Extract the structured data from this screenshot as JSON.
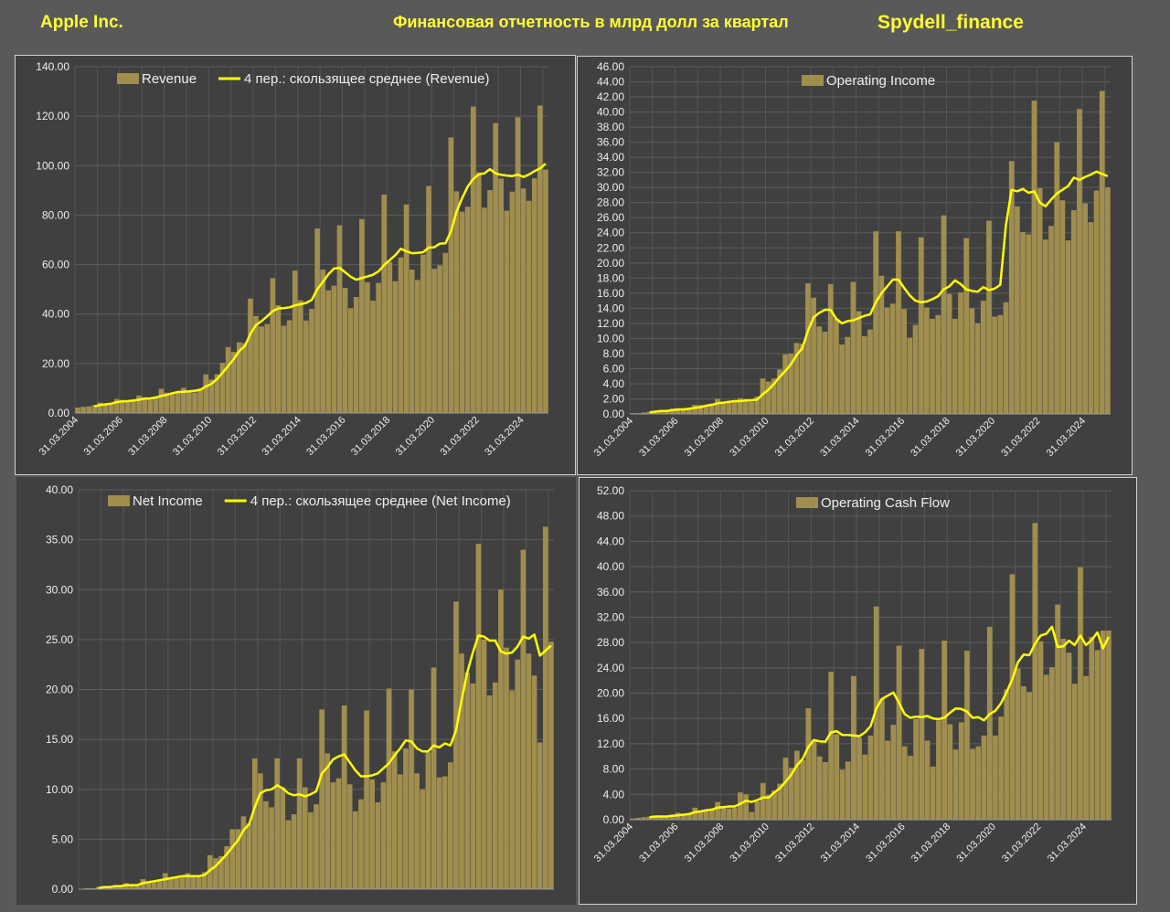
{
  "header": {
    "company": "Apple Inc.",
    "subtitle": "Финансовая отчетность в млрд долл за квартал",
    "brand": "Spydell_finance"
  },
  "colors": {
    "background": "#595959",
    "panel": "#404040",
    "bar": "#a08e4e",
    "line": "#ffff00",
    "header_text": "#ffff33"
  },
  "chart_data": [
    {
      "type": "bar",
      "id": "revenue",
      "title": "",
      "series": [
        {
          "name": "Revenue",
          "kind": "bar",
          "values": [
            2.2,
            2.5,
            2.7,
            3.3,
            4.2,
            3.7,
            3.9,
            5.7,
            5.3,
            4.4,
            4.8,
            7.1,
            6.4,
            5.4,
            6.2,
            9.8,
            8.2,
            7.6,
            8.3,
            10.2,
            9.1,
            8.3,
            9.9,
            15.6,
            13.5,
            15.7,
            20.3,
            26.7,
            24.7,
            28.6,
            28.3,
            46.3,
            39.2,
            35.0,
            36.0,
            54.5,
            43.6,
            35.3,
            37.5,
            57.6,
            45.6,
            37.4,
            42.1,
            74.6,
            58.0,
            49.6,
            51.5,
            75.9,
            50.6,
            42.4,
            46.9,
            78.4,
            52.9,
            45.4,
            52.6,
            88.3,
            61.1,
            53.3,
            62.9,
            84.3,
            58.0,
            53.8,
            64.0,
            91.8,
            58.3,
            59.7,
            64.7,
            111.4,
            89.6,
            81.4,
            83.4,
            123.9,
            97.3,
            83.0,
            90.1,
            117.2,
            94.8,
            81.8,
            89.5,
            119.6,
            90.8,
            85.8,
            94.9,
            124.3,
            98.4
          ]
        },
        {
          "name": "4 пер.: скользящее среднее (Revenue)",
          "kind": "line",
          "values": [
            null,
            null,
            null,
            2.7,
            3.2,
            3.5,
            3.8,
            4.4,
            4.7,
            4.8,
            5.1,
            5.4,
            5.8,
            5.9,
            6.3,
            6.9,
            7.4,
            8.0,
            8.5,
            8.6,
            8.8,
            9.0,
            9.4,
            10.7,
            11.8,
            13.7,
            16.3,
            19.0,
            21.8,
            25.1,
            27.1,
            32.0,
            35.6,
            37.2,
            39.1,
            41.2,
            42.3,
            42.4,
            42.7,
            43.5,
            44.0,
            44.5,
            45.7,
            50.0,
            53.0,
            56.1,
            58.4,
            58.7,
            56.9,
            55.1,
            53.9,
            54.6,
            55.2,
            55.9,
            57.3,
            59.8,
            61.8,
            63.8,
            66.4,
            65.4,
            64.6,
            64.7,
            65.0,
            66.9,
            67.0,
            68.5,
            68.6,
            73.5,
            81.3,
            86.8,
            91.5,
            94.6,
            96.5,
            96.9,
            98.6,
            96.9,
            96.3,
            96.0,
            95.8,
            96.4,
            95.4,
            96.4,
            97.8,
            98.9,
            100.8
          ]
        }
      ],
      "x_labels": [
        "31.03.2004",
        "31.03.2006",
        "31.03.2008",
        "31.03.2010",
        "31.03.2012",
        "31.03.2014",
        "31.03.2016",
        "31.03.2018",
        "31.03.2020",
        "31.03.2022",
        "31.03.2024"
      ],
      "ylim": [
        0,
        140
      ],
      "y_ticks": [
        "0.00",
        "20.00",
        "40.00",
        "60.00",
        "80.00",
        "100.00",
        "120.00",
        "140.00"
      ],
      "grid": true,
      "legend": "top"
    },
    {
      "type": "bar",
      "id": "operating-income",
      "title": "",
      "series": [
        {
          "name": "Operating Income",
          "kind": "bar",
          "values": [
            0.1,
            0.1,
            0.2,
            0.3,
            0.4,
            0.4,
            0.5,
            0.7,
            0.6,
            0.6,
            0.7,
            1.2,
            1.2,
            1.1,
            1.4,
            2.0,
            1.6,
            1.5,
            1.7,
            2.1,
            1.7,
            1.6,
            2.3,
            4.7,
            4.3,
            4.7,
            5.9,
            7.9,
            8.0,
            9.4,
            9.3,
            17.3,
            15.4,
            11.6,
            10.9,
            17.2,
            12.6,
            9.2,
            10.2,
            17.5,
            13.6,
            10.3,
            11.2,
            24.2,
            18.3,
            14.1,
            14.6,
            24.2,
            13.9,
            10.1,
            11.8,
            23.4,
            14.1,
            12.6,
            13.1,
            26.3,
            15.9,
            12.6,
            16.1,
            23.3,
            14.0,
            12.0,
            15.0,
            25.6,
            12.9,
            13.1,
            14.8,
            33.5,
            27.5,
            24.1,
            23.8,
            41.5,
            29.9,
            23.1,
            24.9,
            36.0,
            28.3,
            23.0,
            27.0,
            40.4,
            27.9,
            25.4,
            29.6,
            42.8,
            30.0
          ]
        },
        {
          "name": "4 пер.: скользящее среднее (Operating Income)",
          "kind": "line",
          "values": [
            null,
            null,
            null,
            0.2,
            0.3,
            0.4,
            0.4,
            0.5,
            0.6,
            0.6,
            0.7,
            0.8,
            0.9,
            1.1,
            1.2,
            1.4,
            1.5,
            1.6,
            1.7,
            1.7,
            1.8,
            1.8,
            1.9,
            2.6,
            3.2,
            4.0,
            4.9,
            5.7,
            6.6,
            7.8,
            8.7,
            11.0,
            12.8,
            13.4,
            13.8,
            13.8,
            12.6,
            12.0,
            12.3,
            12.4,
            12.7,
            13.0,
            13.2,
            14.8,
            16.0,
            16.9,
            17.8,
            17.8,
            16.7,
            15.7,
            15.0,
            14.8,
            14.9,
            15.2,
            15.6,
            16.5,
            16.9,
            17.7,
            17.2,
            16.5,
            16.3,
            16.2,
            16.8,
            16.4,
            16.6,
            17.1,
            25.0,
            29.7,
            29.5,
            29.8,
            29.3,
            29.5,
            28.0,
            27.5,
            28.4,
            29.2,
            29.7,
            30.2,
            31.3,
            31.0,
            31.4,
            31.7,
            32.1,
            31.8,
            31.5
          ]
        }
      ],
      "x_labels": [
        "31.03.2004",
        "31.03.2006",
        "31.03.2008",
        "31.03.2010",
        "31.03.2012",
        "31.03.2014",
        "31.03.2016",
        "31.03.2018",
        "31.03.2020",
        "31.03.2022",
        "31.03.2024"
      ],
      "ylim": [
        0,
        46
      ],
      "y_ticks": [
        "0.00",
        "2.00",
        "4.00",
        "6.00",
        "8.00",
        "10.00",
        "12.00",
        "14.00",
        "16.00",
        "18.00",
        "20.00",
        "22.00",
        "24.00",
        "26.00",
        "28.00",
        "30.00",
        "32.00",
        "34.00",
        "36.00",
        "38.00",
        "40.00",
        "42.00",
        "44.00",
        "46.00"
      ],
      "grid": true,
      "legend": "top"
    },
    {
      "type": "bar",
      "id": "net-income",
      "title": "",
      "series": [
        {
          "name": "Net Income",
          "kind": "bar",
          "values": [
            0.0,
            0.1,
            0.1,
            0.2,
            0.3,
            0.3,
            0.3,
            0.4,
            0.6,
            0.4,
            0.5,
            1.0,
            0.8,
            0.8,
            0.9,
            1.6,
            1.2,
            1.1,
            1.2,
            1.6,
            1.3,
            1.2,
            1.7,
            3.4,
            3.1,
            3.3,
            4.3,
            6.0,
            6.0,
            7.3,
            6.6,
            13.1,
            11.6,
            8.8,
            8.2,
            13.1,
            10.2,
            6.9,
            7.5,
            13.1,
            10.2,
            7.7,
            8.5,
            18.0,
            13.6,
            10.7,
            11.1,
            18.4,
            10.5,
            7.8,
            9.0,
            17.9,
            11.0,
            8.7,
            10.7,
            20.1,
            13.8,
            11.5,
            14.1,
            20.0,
            11.6,
            10.0,
            13.7,
            22.2,
            11.2,
            11.3,
            12.7,
            28.8,
            23.6,
            21.7,
            20.6,
            34.6,
            25.0,
            19.4,
            20.7,
            30.0,
            24.2,
            19.9,
            23.0,
            34.0,
            23.6,
            21.4,
            14.7,
            36.3,
            24.8
          ]
        },
        {
          "name": "4 пер.: скользящее среднее (Net Income)",
          "kind": "line",
          "values": [
            null,
            null,
            null,
            0.1,
            0.2,
            0.2,
            0.3,
            0.3,
            0.4,
            0.4,
            0.4,
            0.6,
            0.7,
            0.8,
            0.9,
            1.0,
            1.1,
            1.2,
            1.3,
            1.3,
            1.3,
            1.3,
            1.4,
            1.9,
            2.3,
            2.9,
            3.5,
            4.2,
            4.9,
            5.9,
            6.5,
            8.2,
            9.6,
            9.9,
            10.0,
            10.4,
            10.1,
            9.6,
            9.4,
            9.5,
            9.3,
            9.5,
            9.8,
            11.6,
            12.2,
            13.0,
            13.3,
            13.5,
            12.7,
            11.9,
            11.3,
            11.3,
            11.4,
            11.6,
            12.1,
            12.6,
            13.4,
            14.1,
            14.9,
            14.8,
            14.1,
            13.8,
            13.8,
            14.4,
            14.2,
            14.6,
            14.4,
            15.9,
            19.0,
            21.7,
            23.7,
            25.4,
            25.3,
            24.9,
            24.9,
            23.8,
            23.6,
            23.7,
            24.3,
            25.3,
            25.1,
            25.5,
            23.4,
            23.9,
            24.4
          ]
        }
      ],
      "x_labels": [],
      "ylim": [
        0,
        40
      ],
      "y_ticks": [
        "0.00",
        "5.00",
        "10.00",
        "15.00",
        "20.00",
        "25.00",
        "30.00",
        "35.00",
        "40.00"
      ],
      "grid": true,
      "legend": "top"
    },
    {
      "type": "bar",
      "id": "operating-cash-flow",
      "title": "",
      "series": [
        {
          "name": "Operating Cash Flow",
          "kind": "bar",
          "values": [
            0.2,
            0.3,
            0.4,
            0.5,
            0.6,
            0.5,
            0.5,
            0.8,
            1.1,
            0.9,
            1.0,
            1.9,
            1.5,
            1.6,
            1.7,
            2.8,
            1.9,
            1.8,
            1.9,
            4.3,
            4.0,
            1.2,
            2.9,
            5.8,
            3.9,
            4.6,
            5.7,
            9.8,
            8.2,
            10.9,
            9.4,
            17.6,
            12.6,
            10.0,
            9.1,
            23.4,
            13.5,
            7.9,
            9.2,
            22.7,
            13.0,
            10.3,
            13.3,
            33.7,
            19.1,
            12.5,
            15.0,
            27.5,
            11.6,
            10.1,
            15.9,
            27.0,
            12.5,
            8.4,
            15.7,
            28.3,
            15.1,
            11.1,
            15.4,
            26.7,
            11.2,
            11.6,
            13.3,
            30.5,
            13.3,
            16.3,
            20.6,
            38.8,
            23.9,
            21.1,
            20.2,
            46.9,
            28.2,
            22.9,
            24.1,
            34.0,
            28.6,
            26.4,
            21.5,
            39.9,
            22.7,
            28.9,
            26.8,
            29.9,
            29.9
          ]
        },
        {
          "name": "4 пер.: скользящее среднее (Operating Cash Flow)",
          "kind": "line",
          "values": [
            null,
            null,
            null,
            0.4,
            0.5,
            0.5,
            0.5,
            0.6,
            0.7,
            0.8,
            0.9,
            1.2,
            1.3,
            1.5,
            1.6,
            1.9,
            2.0,
            2.1,
            2.1,
            2.5,
            3.0,
            2.8,
            3.1,
            3.5,
            3.5,
            4.3,
            5.0,
            6.0,
            7.1,
            8.6,
            9.6,
            11.5,
            12.6,
            12.4,
            12.3,
            13.8,
            14.0,
            13.4,
            13.4,
            13.3,
            13.2,
            13.8,
            14.8,
            17.6,
            19.1,
            19.6,
            20.1,
            18.5,
            16.7,
            16.1,
            16.3,
            16.2,
            16.4,
            16.0,
            15.9,
            16.1,
            16.9,
            17.6,
            17.5,
            17.1,
            16.1,
            16.2,
            15.7,
            16.7,
            17.2,
            18.4,
            20.2,
            22.2,
            24.9,
            26.1,
            26.0,
            27.8,
            29.1,
            29.4,
            30.5,
            27.3,
            27.4,
            28.3,
            27.6,
            29.1,
            27.6,
            28.4,
            29.6,
            27.1,
            28.9
          ]
        }
      ],
      "x_labels": [
        "31.03.2004",
        "31.03.2006",
        "31.03.2008",
        "31.03.2010",
        "31.03.2012",
        "31.03.2014",
        "31.03.2016",
        "31.03.2018",
        "31.03.2020",
        "31.03.2022",
        "31.03.2024"
      ],
      "ylim": [
        0,
        52
      ],
      "y_ticks": [
        "0.00",
        "4.00",
        "8.00",
        "12.00",
        "16.00",
        "20.00",
        "24.00",
        "28.00",
        "32.00",
        "36.00",
        "40.00",
        "44.00",
        "48.00",
        "52.00"
      ],
      "grid": true,
      "legend": "top"
    }
  ]
}
